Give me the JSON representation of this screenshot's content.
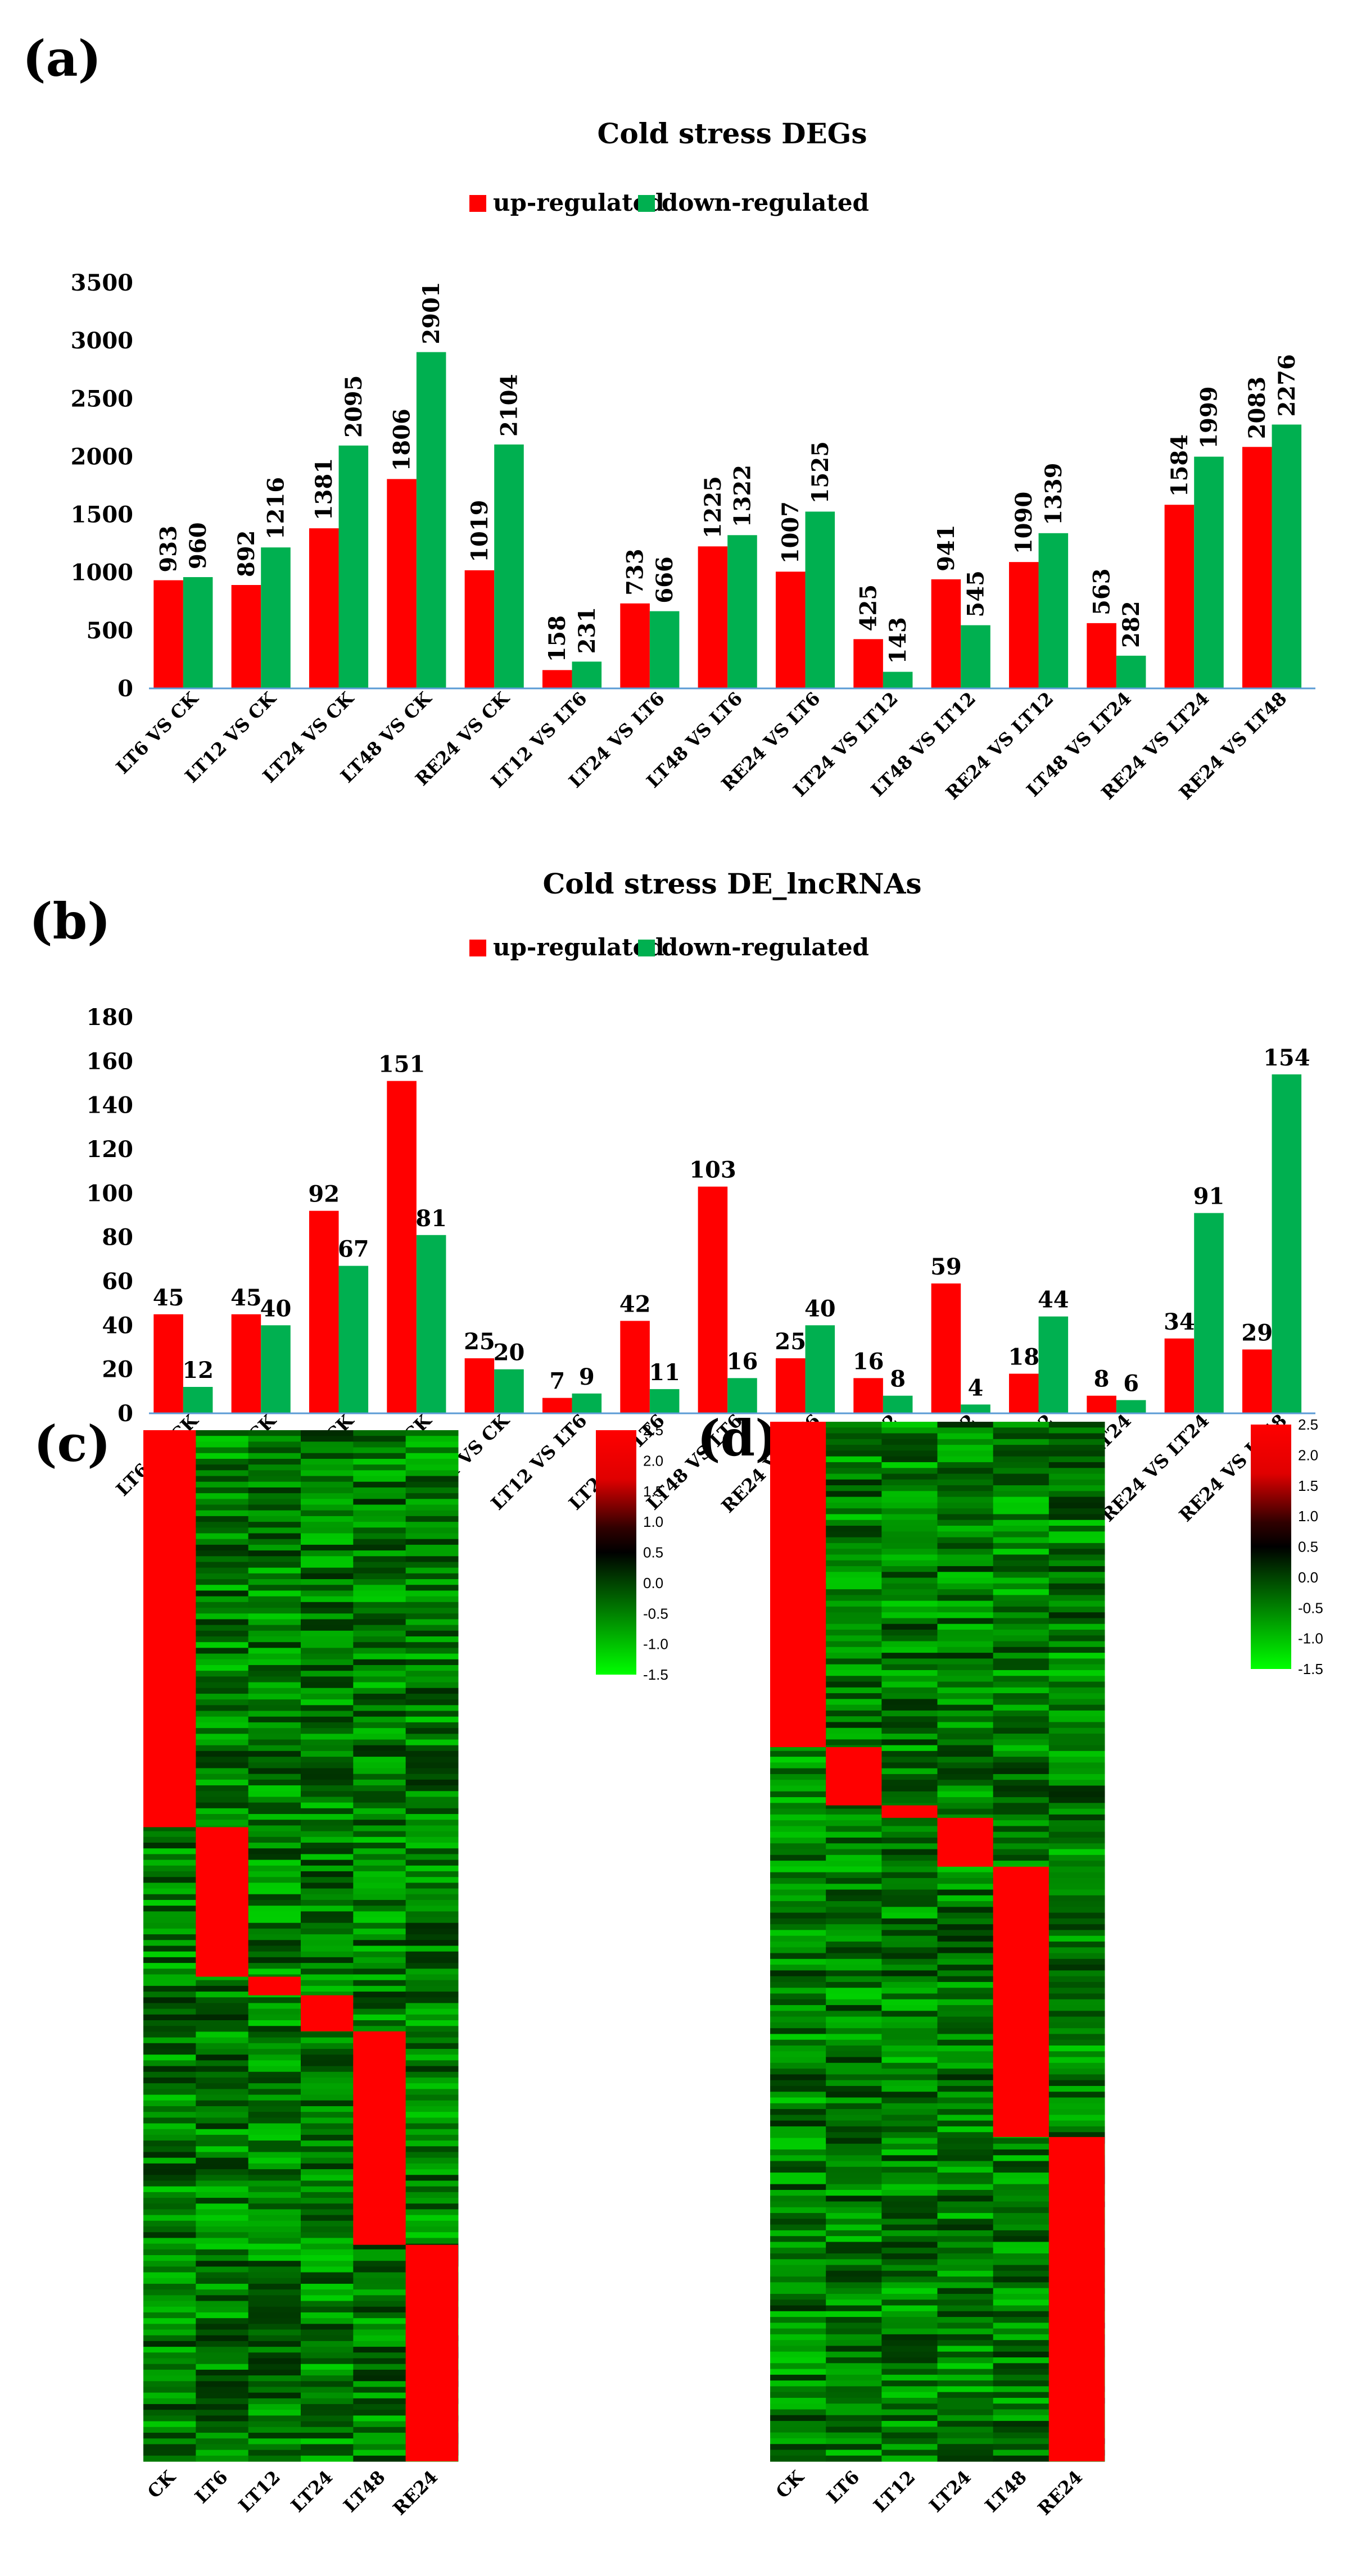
{
  "colors": {
    "up": "#ff0000",
    "down": "#00b050",
    "axis": "#5b9bd5"
  },
  "panels": {
    "a": "(a)",
    "b": "(b)",
    "c": "(c)",
    "d": "(d)"
  },
  "chart_data": [
    {
      "id": "a",
      "type": "bar",
      "title": "Cold stress DEGs",
      "categories": [
        "LT6  VS  CK",
        "LT12 VS  CK",
        "LT24  VS  CK",
        "LT48 VS  CK",
        "RE24  VS  CK",
        "LT12 VS  LT6",
        "LT24 VS  LT6",
        "LT48  VS  LT6",
        "RE24 VS  LT6",
        "LT24 VS  LT12",
        "LT48  VS  LT12",
        "RE24  VS LT12",
        "LT48 VS  LT24",
        "RE24 VS  LT24",
        "RE24 VS  LT48"
      ],
      "series": [
        {
          "name": "up-regulated",
          "values": [
            933,
            892,
            1381,
            1806,
            1019,
            158,
            733,
            1225,
            1007,
            425,
            941,
            1090,
            563,
            1584,
            2083
          ]
        },
        {
          "name": "down-regulated",
          "values": [
            960,
            1216,
            2095,
            2901,
            2104,
            231,
            666,
            1322,
            1525,
            143,
            545,
            1339,
            282,
            1999,
            2276
          ]
        }
      ],
      "ylim": [
        0,
        3500
      ],
      "yticks": [
        0,
        500,
        1000,
        1500,
        2000,
        2500,
        3000,
        3500
      ],
      "label_rotation": "vertical",
      "legend": "top-center",
      "grid": false
    },
    {
      "id": "b",
      "type": "bar",
      "title": "Cold stress DE_lncRNAs",
      "categories": [
        "LT6  VS  CK",
        "LT12 VS  CK",
        "LT24  VS  CK",
        "LT48 VS  CK",
        "RE24  VS  CK",
        "LT12 VS  LT6",
        "LT24 VS  LT6",
        "LT48  VS  LT6",
        "RE24 VS  LT6",
        "LT24 VS  LT12",
        "LT48  VS  LT12",
        "RE24  VS LT12",
        "LT48 VS  LT24",
        "RE24 VS  LT24",
        "RE24 VS  LT48"
      ],
      "series": [
        {
          "name": "up-regulated",
          "values": [
            45,
            45,
            92,
            151,
            25,
            7,
            42,
            103,
            25,
            16,
            59,
            18,
            8,
            34,
            29
          ]
        },
        {
          "name": "down-regulated",
          "values": [
            12,
            40,
            67,
            81,
            20,
            9,
            11,
            16,
            40,
            8,
            4,
            44,
            6,
            91,
            154
          ]
        }
      ],
      "ylim": [
        0,
        180
      ],
      "yticks": [
        0,
        20,
        40,
        60,
        80,
        100,
        120,
        140,
        160,
        180
      ],
      "label_rotation": "horizontal",
      "legend": "top-center",
      "grid": false
    },
    {
      "id": "c",
      "type": "heatmap",
      "columns": [
        "CK",
        "LT6",
        "LT12",
        "LT24",
        "LT48",
        "RE24"
      ],
      "blocks": [
        {
          "column": "CK",
          "start": 0.0,
          "end": 0.385
        },
        {
          "column": "LT6",
          "start": 0.385,
          "end": 0.53
        },
        {
          "column": "LT12",
          "start": 0.53,
          "end": 0.548
        },
        {
          "column": "LT24",
          "start": 0.548,
          "end": 0.583
        },
        {
          "column": "LT48",
          "start": 0.583,
          "end": 0.79
        },
        {
          "column": "RE24",
          "start": 0.79,
          "end": 1.0
        }
      ],
      "colorbar": {
        "ticks": [
          2.5,
          2.0,
          1.5,
          1.0,
          0.5,
          0.0,
          -0.5,
          -1.0,
          -1.5
        ],
        "tick_labels": [
          "2.5",
          "2.0",
          "1.5",
          "1.0",
          "0.5",
          "0.0",
          "-0.5",
          "-1.0",
          "-1.5"
        ]
      }
    },
    {
      "id": "d",
      "type": "heatmap",
      "columns": [
        "CK",
        "LT6",
        "LT12",
        "LT24",
        "LT48",
        "RE24"
      ],
      "blocks": [
        {
          "column": "CK",
          "start": 0.0,
          "end": 0.313
        },
        {
          "column": "LT6",
          "start": 0.313,
          "end": 0.369
        },
        {
          "column": "LT12",
          "start": 0.369,
          "end": 0.381
        },
        {
          "column": "LT24",
          "start": 0.381,
          "end": 0.428
        },
        {
          "column": "LT48",
          "start": 0.428,
          "end": 0.688
        },
        {
          "column": "RE24",
          "start": 0.688,
          "end": 1.0
        }
      ],
      "colorbar": {
        "ticks": [
          2.5,
          2.0,
          1.5,
          1.0,
          0.5,
          0.0,
          -0.5,
          -1.0,
          -1.5
        ],
        "tick_labels": [
          "2.5",
          "2.0",
          "1.5",
          "1.0",
          "0.5",
          "0.0",
          "-0.5",
          "-1.0",
          "-1.5"
        ]
      }
    }
  ]
}
